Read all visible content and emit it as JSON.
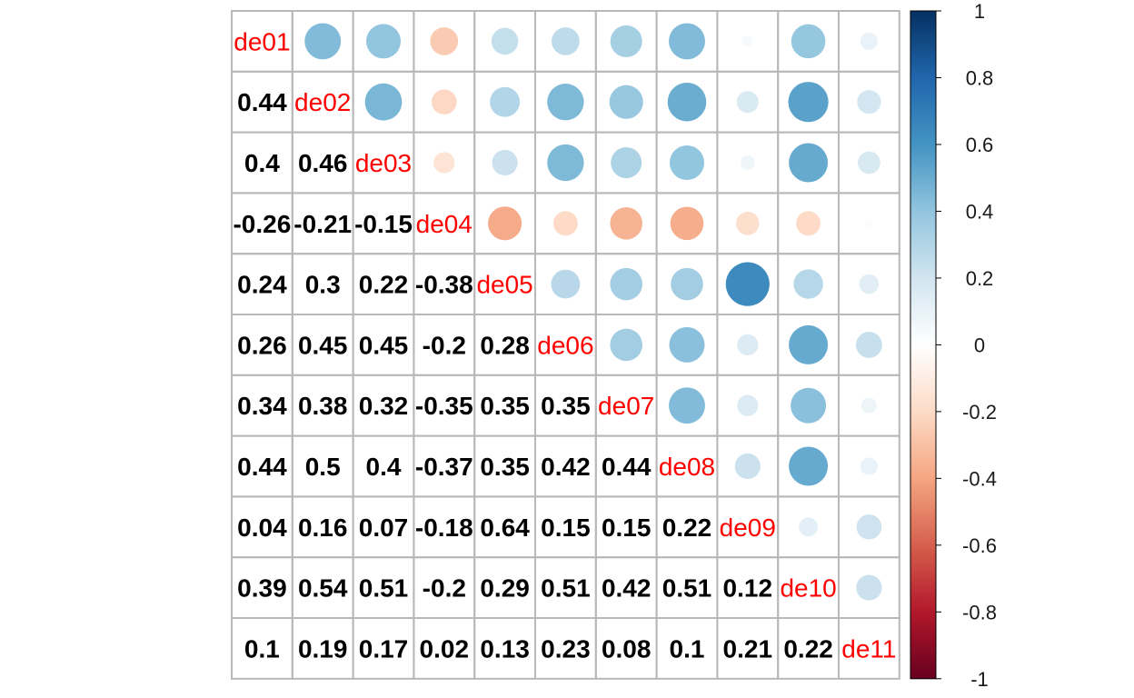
{
  "chart_data": {
    "type": "heatmap",
    "variables": [
      "de01",
      "de02",
      "de03",
      "de04",
      "de05",
      "de06",
      "de07",
      "de08",
      "de09",
      "de10",
      "de11"
    ],
    "matrix": [
      [
        1,
        0.44,
        0.4,
        -0.26,
        0.24,
        0.26,
        0.34,
        0.44,
        0.04,
        0.39,
        0.1
      ],
      [
        0.44,
        1,
        0.46,
        -0.21,
        0.3,
        0.45,
        0.38,
        0.5,
        0.16,
        0.54,
        0.19
      ],
      [
        0.4,
        0.46,
        1,
        -0.15,
        0.22,
        0.45,
        0.32,
        0.4,
        0.07,
        0.51,
        0.17
      ],
      [
        -0.26,
        -0.21,
        -0.15,
        1,
        -0.38,
        -0.2,
        -0.35,
        -0.37,
        -0.18,
        -0.2,
        0.02
      ],
      [
        0.24,
        0.3,
        0.22,
        -0.38,
        1,
        0.28,
        0.35,
        0.35,
        0.64,
        0.29,
        0.13
      ],
      [
        0.26,
        0.45,
        0.45,
        -0.2,
        0.28,
        1,
        0.35,
        0.42,
        0.15,
        0.51,
        0.23
      ],
      [
        0.34,
        0.38,
        0.32,
        -0.35,
        0.35,
        0.35,
        1,
        0.44,
        0.15,
        0.42,
        0.08
      ],
      [
        0.44,
        0.5,
        0.4,
        -0.37,
        0.35,
        0.42,
        0.44,
        1,
        0.22,
        0.51,
        0.1
      ],
      [
        0.04,
        0.16,
        0.07,
        -0.18,
        0.64,
        0.15,
        0.15,
        0.22,
        1,
        0.12,
        0.21
      ],
      [
        0.39,
        0.54,
        0.51,
        -0.2,
        0.29,
        0.51,
        0.42,
        0.51,
        0.12,
        1,
        0.22
      ],
      [
        0.1,
        0.19,
        0.17,
        0.02,
        0.13,
        0.23,
        0.08,
        0.1,
        0.21,
        0.22,
        1
      ]
    ],
    "lower_text": [
      [
        null,
        null,
        null,
        null,
        null,
        null,
        null,
        null,
        null,
        null,
        null
      ],
      [
        "0.44",
        null,
        null,
        null,
        null,
        null,
        null,
        null,
        null,
        null,
        null
      ],
      [
        "0.4",
        "0.46",
        null,
        null,
        null,
        null,
        null,
        null,
        null,
        null,
        null
      ],
      [
        "-0.26",
        "-0.21",
        "-0.15",
        null,
        null,
        null,
        null,
        null,
        null,
        null,
        null
      ],
      [
        "0.24",
        "0.3",
        "0.22",
        "-0.38",
        null,
        null,
        null,
        null,
        null,
        null,
        null
      ],
      [
        "0.26",
        "0.45",
        "0.45",
        "-0.2",
        "0.28",
        null,
        null,
        null,
        null,
        null,
        null
      ],
      [
        "0.34",
        "0.38",
        "0.32",
        "-0.35",
        "0.35",
        "0.35",
        null,
        null,
        null,
        null,
        null
      ],
      [
        "0.44",
        "0.5",
        "0.4",
        "-0.37",
        "0.35",
        "0.42",
        "0.44",
        null,
        null,
        null,
        null
      ],
      [
        "0.04",
        "0.16",
        "0.07",
        "-0.18",
        "0.64",
        "0.15",
        "0.15",
        "0.22",
        null,
        null,
        null
      ],
      [
        "0.39",
        "0.54",
        "0.51",
        "-0.2",
        "0.29",
        "0.51",
        "0.42",
        "0.51",
        "0.12",
        null,
        null
      ],
      [
        "0.1",
        "0.19",
        "0.17",
        "0.02",
        "0.13",
        "0.23",
        "0.08",
        "0.1",
        "0.21",
        "0.22",
        null
      ]
    ],
    "upper_style": "circle",
    "lower_style": "number",
    "diagonal_style": "label",
    "color_scale": {
      "range": [
        -1,
        1
      ],
      "ticks": [
        "-1",
        "-0.8",
        "-0.6",
        "-0.4",
        "-0.2",
        "0",
        "0.2",
        "0.4",
        "0.6",
        "0.8",
        "1"
      ],
      "colors": [
        "#67001F",
        "#B2182B",
        "#D6604D",
        "#F4A582",
        "#FDDBC7",
        "#FFFFFF",
        "#D1E5F0",
        "#92C5DE",
        "#4393C3",
        "#2166AC",
        "#053061"
      ]
    },
    "legend_position": "right",
    "label_color": "#FF0000",
    "number_color": "#000000",
    "grid_color": "#B8B8B8"
  }
}
